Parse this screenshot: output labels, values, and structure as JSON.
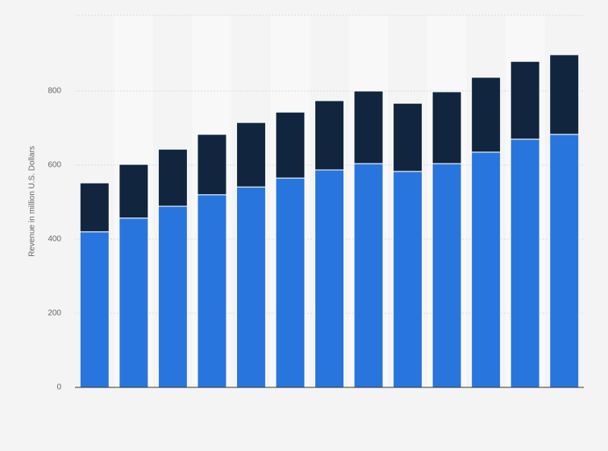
{
  "chart_data": {
    "type": "stacked-bar",
    "y_label": "Revenue in million U.S. Dollars",
    "categories": [
      null,
      null,
      null,
      null,
      null,
      null,
      null,
      null,
      null,
      null,
      null,
      null,
      null
    ],
    "series": [
      {
        "color": "#2876dd",
        "values": [
          420,
          457,
          489,
          520,
          541,
          565,
          587,
          604,
          583,
          604,
          635,
          670,
          683
        ]
      },
      {
        "color": "#11263e",
        "values": [
          132,
          145,
          154,
          163,
          174,
          178,
          187,
          196,
          184,
          194,
          202,
          210,
          215
        ]
      }
    ],
    "ylim": [
      0,
      1000
    ],
    "yticks": [
      0,
      200,
      400,
      600,
      800
    ],
    "grid": true
  }
}
